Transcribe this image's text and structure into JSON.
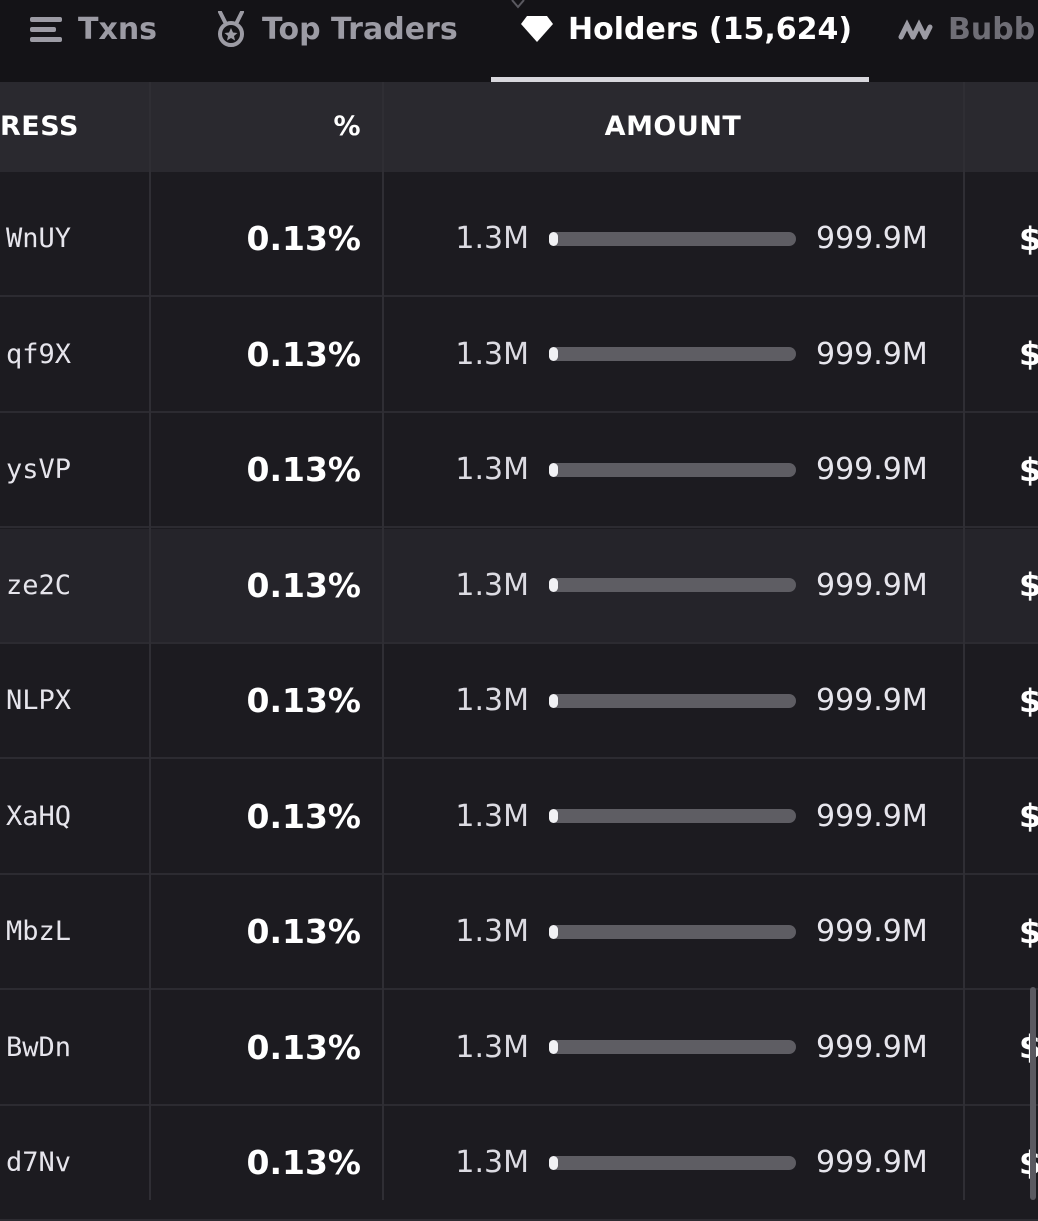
{
  "tabs": [
    {
      "label": "Txns",
      "icon": "list-icon",
      "active": false
    },
    {
      "label": "Top Traders",
      "icon": "medal-icon",
      "active": false
    },
    {
      "label": "Holders (15,624)",
      "icon": "diamond-icon",
      "active": true
    },
    {
      "label": "Bubb",
      "icon": "bubblemaps-icon",
      "active": false
    }
  ],
  "columns": {
    "address": "RESS",
    "percent": "%",
    "amount": "AMOUNT"
  },
  "rows": [
    {
      "address": "WnUY",
      "percent": "0.13%",
      "amount": "1.3M",
      "supply": "999.9M",
      "fill_fraction": 0.0013,
      "value_prefix": "$"
    },
    {
      "address": "qf9X",
      "percent": "0.13%",
      "amount": "1.3M",
      "supply": "999.9M",
      "fill_fraction": 0.0013,
      "value_prefix": "$"
    },
    {
      "address": "ysVP",
      "percent": "0.13%",
      "amount": "1.3M",
      "supply": "999.9M",
      "fill_fraction": 0.0013,
      "value_prefix": "$"
    },
    {
      "address": "ze2C",
      "percent": "0.13%",
      "amount": "1.3M",
      "supply": "999.9M",
      "fill_fraction": 0.0013,
      "value_prefix": "$"
    },
    {
      "address": "NLPX",
      "percent": "0.13%",
      "amount": "1.3M",
      "supply": "999.9M",
      "fill_fraction": 0.0013,
      "value_prefix": "$"
    },
    {
      "address": "XaHQ",
      "percent": "0.13%",
      "amount": "1.3M",
      "supply": "999.9M",
      "fill_fraction": 0.0013,
      "value_prefix": "$"
    },
    {
      "address": "MbzL",
      "percent": "0.13%",
      "amount": "1.3M",
      "supply": "999.9M",
      "fill_fraction": 0.0013,
      "value_prefix": "$"
    },
    {
      "address": "BwDn",
      "percent": "0.13%",
      "amount": "1.3M",
      "supply": "999.9M",
      "fill_fraction": 0.0013,
      "value_prefix": "$"
    },
    {
      "address": "d7Nv",
      "percent": "0.13%",
      "amount": "1.3M",
      "supply": "999.9M",
      "fill_fraction": 0.0013,
      "value_prefix": "$"
    }
  ],
  "colors": {
    "background": "#1c1b20",
    "tabbar": "#141317",
    "header": "#2a292f",
    "bar_track": "#5e5d63",
    "bar_fill": "#f1f1f4"
  }
}
